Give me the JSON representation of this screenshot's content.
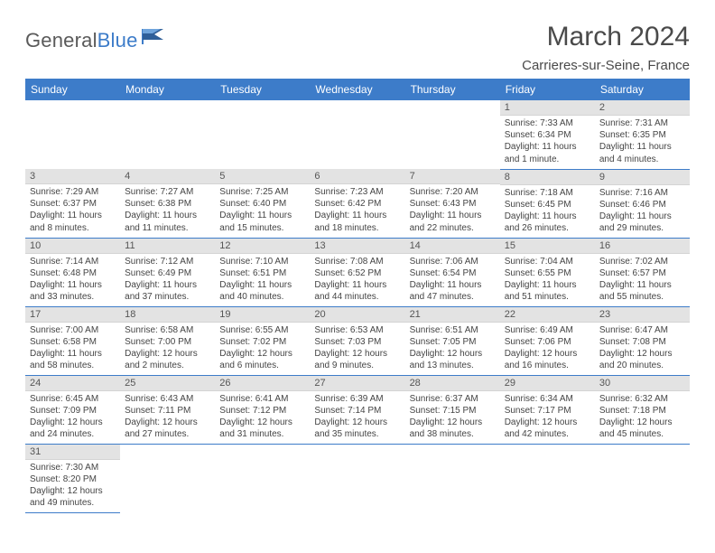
{
  "brand": {
    "word1": "General",
    "word2": "Blue"
  },
  "title": "March 2024",
  "location": "Carrieres-sur-Seine, France",
  "colors": {
    "accent": "#3d7cc9",
    "header_bg": "#3d7cc9",
    "header_text": "#ffffff",
    "daynum_bg": "#e3e3e3",
    "row_divider": "#3d7cc9",
    "text": "#444444",
    "title_text": "#4a4a4a",
    "logo_gray": "#5a5a5a"
  },
  "typography": {
    "title_fontsize": 30,
    "location_fontsize": 15,
    "header_fontsize": 12,
    "daynum_fontsize": 11,
    "body_fontsize": 10
  },
  "dayHeaders": [
    "Sunday",
    "Monday",
    "Tuesday",
    "Wednesday",
    "Thursday",
    "Friday",
    "Saturday"
  ],
  "weeks": [
    [
      null,
      null,
      null,
      null,
      null,
      {
        "n": "1",
        "sr": "Sunrise: 7:33 AM",
        "ss": "Sunset: 6:34 PM",
        "d1": "Daylight: 11 hours",
        "d2": "and 1 minute."
      },
      {
        "n": "2",
        "sr": "Sunrise: 7:31 AM",
        "ss": "Sunset: 6:35 PM",
        "d1": "Daylight: 11 hours",
        "d2": "and 4 minutes."
      }
    ],
    [
      {
        "n": "3",
        "sr": "Sunrise: 7:29 AM",
        "ss": "Sunset: 6:37 PM",
        "d1": "Daylight: 11 hours",
        "d2": "and 8 minutes."
      },
      {
        "n": "4",
        "sr": "Sunrise: 7:27 AM",
        "ss": "Sunset: 6:38 PM",
        "d1": "Daylight: 11 hours",
        "d2": "and 11 minutes."
      },
      {
        "n": "5",
        "sr": "Sunrise: 7:25 AM",
        "ss": "Sunset: 6:40 PM",
        "d1": "Daylight: 11 hours",
        "d2": "and 15 minutes."
      },
      {
        "n": "6",
        "sr": "Sunrise: 7:23 AM",
        "ss": "Sunset: 6:42 PM",
        "d1": "Daylight: 11 hours",
        "d2": "and 18 minutes."
      },
      {
        "n": "7",
        "sr": "Sunrise: 7:20 AM",
        "ss": "Sunset: 6:43 PM",
        "d1": "Daylight: 11 hours",
        "d2": "and 22 minutes."
      },
      {
        "n": "8",
        "sr": "Sunrise: 7:18 AM",
        "ss": "Sunset: 6:45 PM",
        "d1": "Daylight: 11 hours",
        "d2": "and 26 minutes."
      },
      {
        "n": "9",
        "sr": "Sunrise: 7:16 AM",
        "ss": "Sunset: 6:46 PM",
        "d1": "Daylight: 11 hours",
        "d2": "and 29 minutes."
      }
    ],
    [
      {
        "n": "10",
        "sr": "Sunrise: 7:14 AM",
        "ss": "Sunset: 6:48 PM",
        "d1": "Daylight: 11 hours",
        "d2": "and 33 minutes."
      },
      {
        "n": "11",
        "sr": "Sunrise: 7:12 AM",
        "ss": "Sunset: 6:49 PM",
        "d1": "Daylight: 11 hours",
        "d2": "and 37 minutes."
      },
      {
        "n": "12",
        "sr": "Sunrise: 7:10 AM",
        "ss": "Sunset: 6:51 PM",
        "d1": "Daylight: 11 hours",
        "d2": "and 40 minutes."
      },
      {
        "n": "13",
        "sr": "Sunrise: 7:08 AM",
        "ss": "Sunset: 6:52 PM",
        "d1": "Daylight: 11 hours",
        "d2": "and 44 minutes."
      },
      {
        "n": "14",
        "sr": "Sunrise: 7:06 AM",
        "ss": "Sunset: 6:54 PM",
        "d1": "Daylight: 11 hours",
        "d2": "and 47 minutes."
      },
      {
        "n": "15",
        "sr": "Sunrise: 7:04 AM",
        "ss": "Sunset: 6:55 PM",
        "d1": "Daylight: 11 hours",
        "d2": "and 51 minutes."
      },
      {
        "n": "16",
        "sr": "Sunrise: 7:02 AM",
        "ss": "Sunset: 6:57 PM",
        "d1": "Daylight: 11 hours",
        "d2": "and 55 minutes."
      }
    ],
    [
      {
        "n": "17",
        "sr": "Sunrise: 7:00 AM",
        "ss": "Sunset: 6:58 PM",
        "d1": "Daylight: 11 hours",
        "d2": "and 58 minutes."
      },
      {
        "n": "18",
        "sr": "Sunrise: 6:58 AM",
        "ss": "Sunset: 7:00 PM",
        "d1": "Daylight: 12 hours",
        "d2": "and 2 minutes."
      },
      {
        "n": "19",
        "sr": "Sunrise: 6:55 AM",
        "ss": "Sunset: 7:02 PM",
        "d1": "Daylight: 12 hours",
        "d2": "and 6 minutes."
      },
      {
        "n": "20",
        "sr": "Sunrise: 6:53 AM",
        "ss": "Sunset: 7:03 PM",
        "d1": "Daylight: 12 hours",
        "d2": "and 9 minutes."
      },
      {
        "n": "21",
        "sr": "Sunrise: 6:51 AM",
        "ss": "Sunset: 7:05 PM",
        "d1": "Daylight: 12 hours",
        "d2": "and 13 minutes."
      },
      {
        "n": "22",
        "sr": "Sunrise: 6:49 AM",
        "ss": "Sunset: 7:06 PM",
        "d1": "Daylight: 12 hours",
        "d2": "and 16 minutes."
      },
      {
        "n": "23",
        "sr": "Sunrise: 6:47 AM",
        "ss": "Sunset: 7:08 PM",
        "d1": "Daylight: 12 hours",
        "d2": "and 20 minutes."
      }
    ],
    [
      {
        "n": "24",
        "sr": "Sunrise: 6:45 AM",
        "ss": "Sunset: 7:09 PM",
        "d1": "Daylight: 12 hours",
        "d2": "and 24 minutes."
      },
      {
        "n": "25",
        "sr": "Sunrise: 6:43 AM",
        "ss": "Sunset: 7:11 PM",
        "d1": "Daylight: 12 hours",
        "d2": "and 27 minutes."
      },
      {
        "n": "26",
        "sr": "Sunrise: 6:41 AM",
        "ss": "Sunset: 7:12 PM",
        "d1": "Daylight: 12 hours",
        "d2": "and 31 minutes."
      },
      {
        "n": "27",
        "sr": "Sunrise: 6:39 AM",
        "ss": "Sunset: 7:14 PM",
        "d1": "Daylight: 12 hours",
        "d2": "and 35 minutes."
      },
      {
        "n": "28",
        "sr": "Sunrise: 6:37 AM",
        "ss": "Sunset: 7:15 PM",
        "d1": "Daylight: 12 hours",
        "d2": "and 38 minutes."
      },
      {
        "n": "29",
        "sr": "Sunrise: 6:34 AM",
        "ss": "Sunset: 7:17 PM",
        "d1": "Daylight: 12 hours",
        "d2": "and 42 minutes."
      },
      {
        "n": "30",
        "sr": "Sunrise: 6:32 AM",
        "ss": "Sunset: 7:18 PM",
        "d1": "Daylight: 12 hours",
        "d2": "and 45 minutes."
      }
    ],
    [
      {
        "n": "31",
        "sr": "Sunrise: 7:30 AM",
        "ss": "Sunset: 8:20 PM",
        "d1": "Daylight: 12 hours",
        "d2": "and 49 minutes."
      },
      null,
      null,
      null,
      null,
      null,
      null
    ]
  ]
}
